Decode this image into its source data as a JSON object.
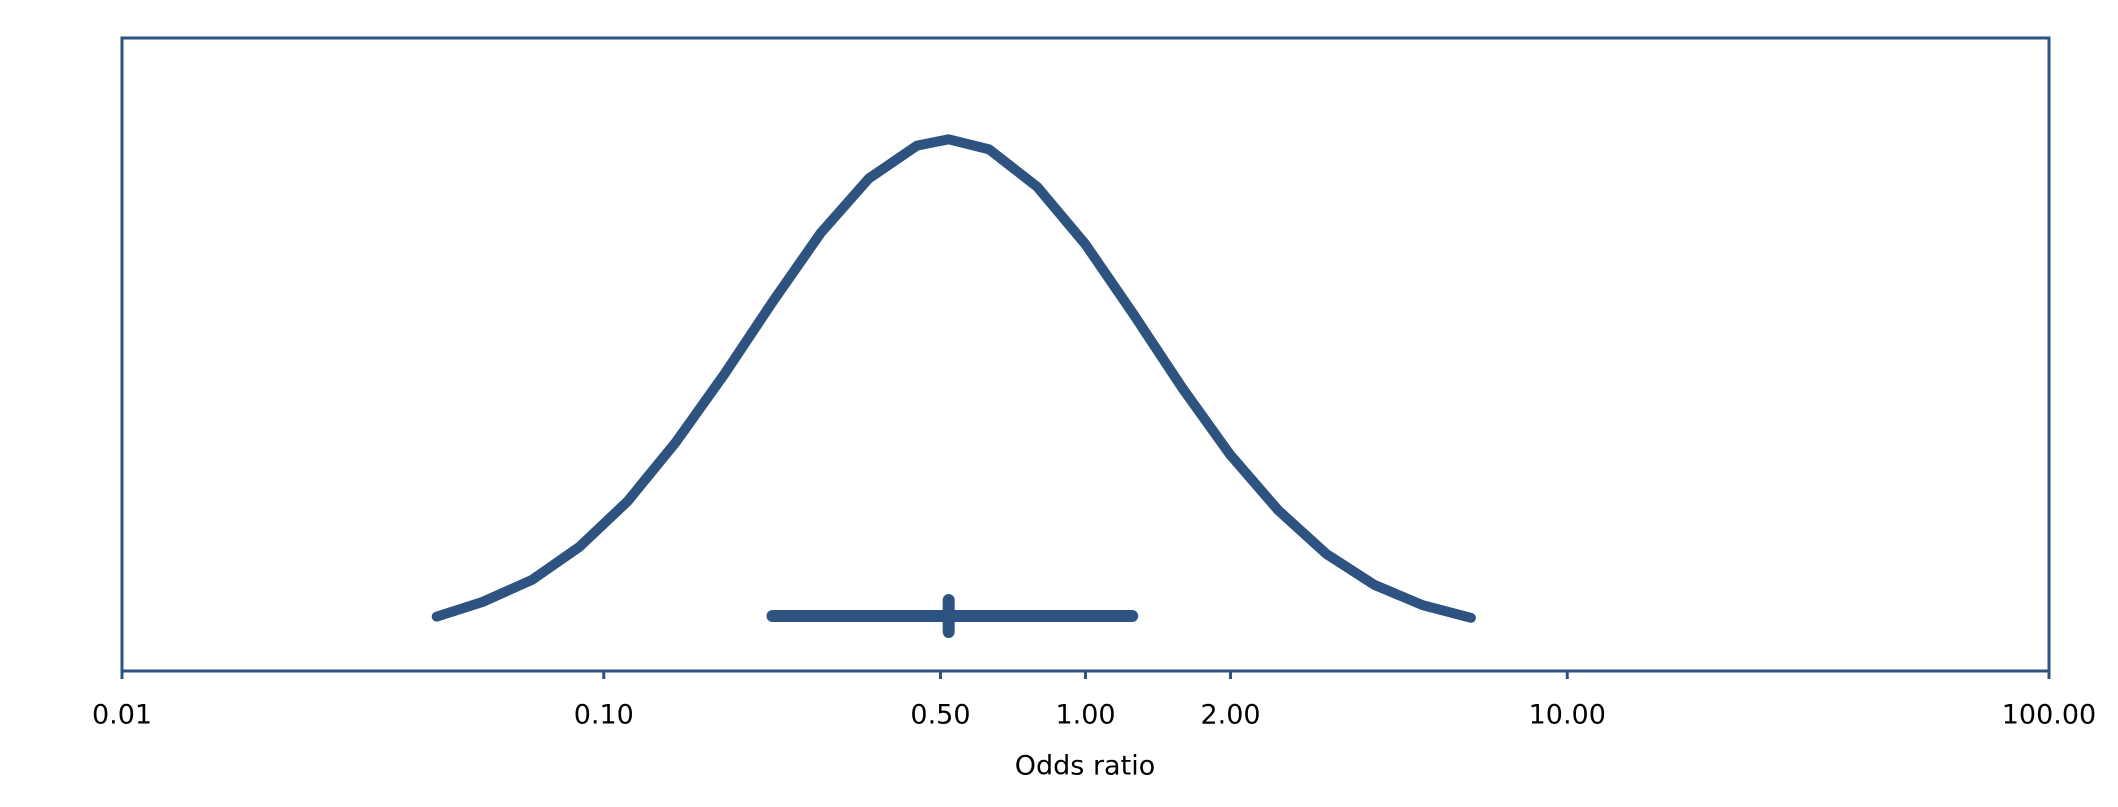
{
  "chart_data": {
    "type": "line",
    "x_label": "Odds ratio",
    "xscale": "log",
    "xlim": [
      0.01,
      100
    ],
    "xticks": [
      0.01,
      {
        "value": 0.1,
        "label": "0.10"
      },
      {
        "value": 0.5,
        "label": "0.50"
      },
      {
        "value": 1,
        "label": "1.00"
      },
      {
        "value": 2,
        "label": "2.00"
      },
      {
        "value": 10,
        "label": "10.00"
      },
      {
        "value": 100,
        "label": "100.00"
      }
    ],
    "ylim": [
      0,
      1
    ],
    "color": "#2f5380",
    "x": [
      0.045,
      0.056,
      0.071,
      0.089,
      0.112,
      0.141,
      0.178,
      0.224,
      0.282,
      0.355,
      0.447,
      0.52,
      0.631,
      0.794,
      1.0,
      1.259,
      1.585,
      1.995,
      2.512,
      3.162,
      3.981,
      5.012,
      6.31
    ],
    "values": [
      0.086,
      0.109,
      0.144,
      0.196,
      0.268,
      0.361,
      0.469,
      0.583,
      0.692,
      0.778,
      0.83,
      0.84,
      0.824,
      0.765,
      0.674,
      0.563,
      0.448,
      0.342,
      0.254,
      0.185,
      0.136,
      0.104,
      0.084
    ],
    "interval": {
      "low": 0.224,
      "estimate": 0.52,
      "high": 1.25
    }
  }
}
